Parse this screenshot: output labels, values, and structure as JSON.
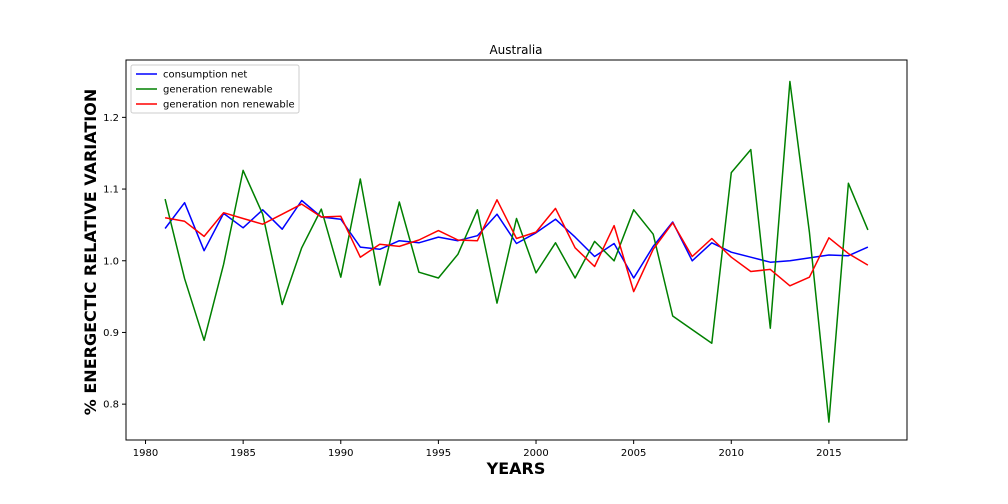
{
  "chart_data": {
    "type": "line",
    "title": "Australia",
    "xlabel": "YEARS",
    "ylabel": "% ENERGECTIC RELATIVE VARIATION",
    "xlim": [
      1979,
      2019
    ],
    "ylim": [
      0.75,
      1.28
    ],
    "xticks": [
      1980,
      1985,
      1990,
      1995,
      2000,
      2005,
      2010,
      2015
    ],
    "yticks": [
      0.8,
      0.9,
      1.0,
      1.1,
      1.2
    ],
    "legend_position": "upper-left",
    "grid": false,
    "x": [
      1981,
      1982,
      1983,
      1984,
      1985,
      1986,
      1987,
      1988,
      1989,
      1990,
      1991,
      1992,
      1993,
      1994,
      1995,
      1996,
      1997,
      1998,
      1999,
      2000,
      2001,
      2002,
      2003,
      2004,
      2005,
      2006,
      2007,
      2008,
      2009,
      2010,
      2011,
      2012,
      2013,
      2014,
      2015,
      2016,
      2017
    ],
    "series": [
      {
        "name": "consumption net",
        "color": "#0000ff",
        "values": [
          1.045,
          1.081,
          1.014,
          1.066,
          1.046,
          1.071,
          1.044,
          1.084,
          1.061,
          1.058,
          1.019,
          1.016,
          1.028,
          1.025,
          1.033,
          1.028,
          1.035,
          1.065,
          1.024,
          1.039,
          1.058,
          1.033,
          1.006,
          1.024,
          0.976,
          1.02,
          1.054,
          1.0,
          1.025,
          1.012,
          1.005,
          0.998,
          1.0,
          1.004,
          1.008,
          1.007,
          1.019
        ]
      },
      {
        "name": "generation renewable",
        "color": "#008000",
        "values": [
          1.086,
          0.975,
          0.889,
          0.995,
          1.126,
          1.065,
          0.939,
          1.018,
          1.072,
          0.977,
          1.114,
          0.966,
          1.082,
          0.984,
          0.976,
          1.009,
          1.071,
          0.941,
          1.059,
          0.983,
          1.025,
          0.976,
          1.027,
          1.0,
          1.071,
          1.037,
          0.923,
          0.904,
          0.885,
          1.123,
          1.155,
          0.906,
          1.25,
          1.04,
          0.775,
          1.108,
          1.043
        ]
      },
      {
        "name": "generation non renewable",
        "color": "#ff0000",
        "values": [
          1.06,
          1.055,
          1.034,
          1.067,
          1.059,
          1.051,
          1.065,
          1.079,
          1.061,
          1.062,
          1.005,
          1.023,
          1.02,
          1.029,
          1.042,
          1.029,
          1.028,
          1.085,
          1.031,
          1.04,
          1.073,
          1.018,
          0.992,
          1.049,
          0.957,
          1.016,
          1.053,
          1.006,
          1.031,
          1.005,
          0.985,
          0.988,
          0.965,
          0.977,
          1.032,
          1.01,
          0.994
        ]
      }
    ]
  }
}
